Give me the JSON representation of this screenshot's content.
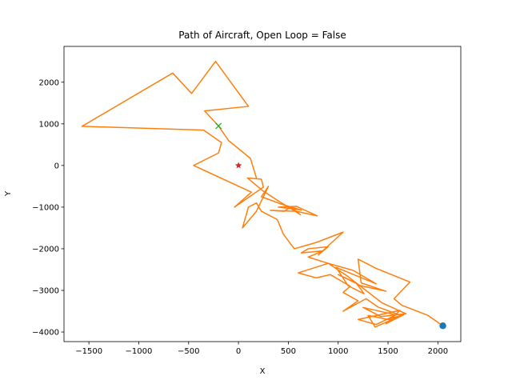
{
  "chart_data": {
    "type": "line",
    "title": "Path of Aircraft, Open Loop = False",
    "xlabel": "X",
    "ylabel": "Y",
    "xlim": [
      -1750,
      2230
    ],
    "ylim": [
      -4230,
      2860
    ],
    "xticks": [
      -1500,
      -1000,
      -500,
      0,
      500,
      1000,
      1500,
      2000
    ],
    "yticks": [
      -4000,
      -3000,
      -2000,
      -1000,
      0,
      1000,
      2000
    ],
    "xtick_labels": [
      "−1500",
      "−1000",
      "−500",
      "0",
      "500",
      "1000",
      "1500",
      "2000"
    ],
    "ytick_labels": [
      "−4000",
      "−3000",
      "−2000",
      "−1000",
      "0",
      "1000",
      "2000"
    ],
    "grid": false,
    "colors": {
      "path": "#ff7f0e",
      "start": "#1f77b4",
      "target": "#2ca02c",
      "origin": "#d62728"
    },
    "series": [
      {
        "type": "line",
        "points": [
          [
            2050,
            -3850
          ],
          [
            1900,
            -3600
          ],
          [
            1640,
            -3360
          ],
          [
            1560,
            -3200
          ],
          [
            1720,
            -2800
          ],
          [
            1380,
            -2470
          ],
          [
            1200,
            -2250
          ],
          [
            1230,
            -2820
          ],
          [
            1480,
            -3020
          ],
          [
            1230,
            -2890
          ],
          [
            1000,
            -2620
          ],
          [
            1180,
            -2820
          ],
          [
            1260,
            -3080
          ],
          [
            1100,
            -2890
          ],
          [
            980,
            -2450
          ],
          [
            1380,
            -2840
          ],
          [
            1150,
            -2520
          ],
          [
            900,
            -2350
          ],
          [
            1100,
            -2670
          ],
          [
            1440,
            -3300
          ],
          [
            1680,
            -3560
          ],
          [
            1430,
            -3630
          ],
          [
            1250,
            -3410
          ],
          [
            1580,
            -3590
          ],
          [
            1380,
            -3820
          ],
          [
            1200,
            -3700
          ],
          [
            1620,
            -3480
          ],
          [
            1480,
            -3800
          ],
          [
            1660,
            -3580
          ],
          [
            1370,
            -3880
          ],
          [
            1300,
            -3600
          ],
          [
            1500,
            -3700
          ],
          [
            1630,
            -3600
          ],
          [
            1400,
            -3400
          ],
          [
            1280,
            -3200
          ],
          [
            1050,
            -3500
          ],
          [
            1200,
            -3250
          ],
          [
            1050,
            -3050
          ],
          [
            1120,
            -2900
          ],
          [
            920,
            -2620
          ],
          [
            780,
            -2700
          ],
          [
            600,
            -2580
          ],
          [
            900,
            -2350
          ],
          [
            700,
            -2200
          ],
          [
            850,
            -2050
          ],
          [
            630,
            -2100
          ],
          [
            700,
            -2000
          ],
          [
            900,
            -1950
          ],
          [
            800,
            -2150
          ],
          [
            1050,
            -1600
          ],
          [
            780,
            -1850
          ],
          [
            560,
            -2000
          ],
          [
            450,
            -1650
          ],
          [
            390,
            -1300
          ],
          [
            230,
            -1100
          ],
          [
            180,
            -900
          ],
          [
            100,
            -1000
          ],
          [
            40,
            -1500
          ],
          [
            180,
            -1100
          ],
          [
            300,
            -500
          ],
          [
            230,
            -750
          ],
          [
            420,
            -920
          ],
          [
            630,
            -1070
          ],
          [
            400,
            -1000
          ],
          [
            580,
            -980
          ],
          [
            790,
            -1210
          ],
          [
            580,
            -1100
          ],
          [
            320,
            -1080
          ],
          [
            460,
            -1100
          ],
          [
            520,
            -1000
          ],
          [
            620,
            -1180
          ],
          [
            400,
            -850
          ],
          [
            240,
            -600
          ],
          [
            90,
            -300
          ],
          [
            230,
            -330
          ],
          [
            250,
            -520
          ],
          [
            -40,
            -1000
          ],
          [
            130,
            -640
          ],
          [
            -450,
            0
          ],
          [
            -200,
            300
          ],
          [
            -170,
            550
          ],
          [
            -350,
            850
          ],
          [
            -1570,
            940
          ],
          [
            -660,
            2220
          ],
          [
            -470,
            1730
          ],
          [
            -230,
            2500
          ],
          [
            100,
            1420
          ],
          [
            -340,
            1310
          ],
          [
            -200,
            950
          ],
          [
            -100,
            600
          ],
          [
            120,
            170
          ],
          [
            180,
            -300
          ]
        ]
      }
    ],
    "markers": [
      {
        "shape": "circle",
        "x": 2050,
        "y": -3850
      },
      {
        "shape": "x",
        "x": -200,
        "y": 950
      },
      {
        "shape": "star",
        "x": 0,
        "y": 0
      }
    ]
  }
}
